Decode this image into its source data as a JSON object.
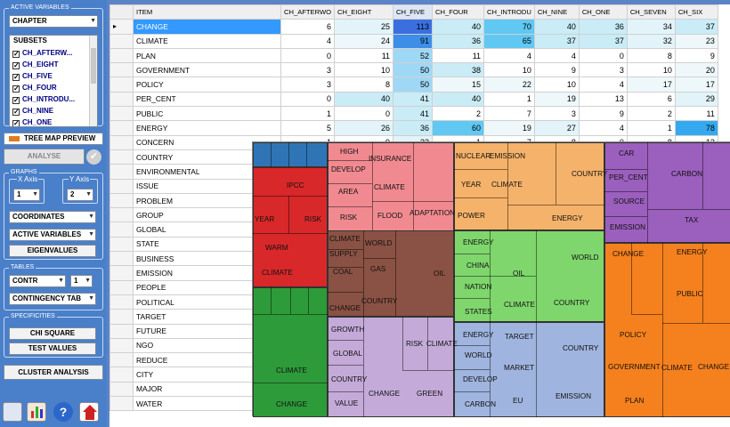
{
  "sidebar": {
    "active_variables_title": "ACTIVE VARIABLES",
    "chapter_select": "CHAPTER",
    "subsets_header": "SUBSETS",
    "subsets": [
      "CH_AFTERW...",
      "CH_EIGHT",
      "CH_FIVE",
      "CH_FOUR",
      "CH_INTRODU...",
      "CH_NINE",
      "CH_ONE"
    ],
    "tree_map_preview": "TREE MAP PREVIEW",
    "analyse": "ANALYSE",
    "graphs_title": "GRAPHS",
    "x_axis_label": "X Axis",
    "y_axis_label": "Y Axis",
    "x_axis_value": "1",
    "y_axis_value": "2",
    "coordinates": "COORDINATES",
    "active_variables_select": "ACTIVE VARIABLES",
    "eigenvalues": "EIGENVALUES",
    "tables_title": "TABLES",
    "contr_select": "CONTR",
    "contr_num": "1",
    "contingency": "CONTINGENCY TAB",
    "specificities_title": "SPECIFICITIES",
    "chi_square": "CHI SQUARE",
    "test_values": "TEST VALUES",
    "cluster_analysis": "CLUSTER ANALYSIS"
  },
  "grid": {
    "columns": [
      "ITEM",
      "CH_AFTERWO",
      "CH_EIGHT",
      "CH_FIVE",
      "CH_FOUR",
      "CH_INTRODU",
      "CH_NINE",
      "CH_ONE",
      "CH_SEVEN",
      "CH_SIX"
    ],
    "rows": [
      {
        "item": "CHANGE",
        "v": [
          "6",
          "25",
          "113",
          "40",
          "70",
          "40",
          "36",
          "34",
          "37"
        ]
      },
      {
        "item": "CLIMATE",
        "v": [
          "4",
          "24",
          "91",
          "36",
          "65",
          "37",
          "37",
          "32",
          "23"
        ]
      },
      {
        "item": "PLAN",
        "v": [
          "0",
          "11",
          "52",
          "11",
          "4",
          "4",
          "0",
          "8",
          "9"
        ]
      },
      {
        "item": "GOVERNMENT",
        "v": [
          "3",
          "10",
          "50",
          "38",
          "10",
          "9",
          "3",
          "10",
          "20"
        ]
      },
      {
        "item": "POLICY",
        "v": [
          "3",
          "8",
          "50",
          "15",
          "22",
          "10",
          "4",
          "17",
          "17"
        ]
      },
      {
        "item": "PER_CENT",
        "v": [
          "0",
          "40",
          "41",
          "40",
          "1",
          "19",
          "13",
          "6",
          "29"
        ]
      },
      {
        "item": "PUBLIC",
        "v": [
          "1",
          "0",
          "41",
          "2",
          "7",
          "3",
          "9",
          "2",
          "11"
        ]
      },
      {
        "item": "ENERGY",
        "v": [
          "5",
          "26",
          "36",
          "60",
          "19",
          "27",
          "4",
          "1",
          "78"
        ]
      },
      {
        "item": "CONCERN",
        "v": [
          "1",
          "9",
          "32",
          "1",
          "7",
          "8",
          "0",
          "8",
          "13"
        ]
      },
      {
        "item": "COUNTRY",
        "v": []
      },
      {
        "item": "ENVIRONMENTAL",
        "v": []
      },
      {
        "item": "ISSUE",
        "v": []
      },
      {
        "item": "PROBLEM",
        "v": []
      },
      {
        "item": "GROUP",
        "v": []
      },
      {
        "item": "GLOBAL",
        "v": []
      },
      {
        "item": "STATE",
        "v": []
      },
      {
        "item": "BUSINESS",
        "v": []
      },
      {
        "item": "EMISSION",
        "v": []
      },
      {
        "item": "PEOPLE",
        "v": []
      },
      {
        "item": "POLITICAL",
        "v": []
      },
      {
        "item": "TARGET",
        "v": []
      },
      {
        "item": "FUTURE",
        "v": []
      },
      {
        "item": "NGO",
        "v": []
      },
      {
        "item": "REDUCE",
        "v": []
      },
      {
        "item": "CITY",
        "v": []
      },
      {
        "item": "MAJOR",
        "v": []
      },
      {
        "item": "WATER",
        "v": []
      }
    ]
  },
  "treemap": {
    "labels": [
      "IPCC",
      "YEAR",
      "RISK",
      "WARM",
      "CLIMATE",
      "CLIMATE",
      "CHANGE",
      "HIGH",
      "DEVELOP",
      "INSURANCE",
      "AREA",
      "CLIMATE",
      "RISK",
      "FLOOD",
      "ADAPTATION",
      "NUCLEAR",
      "EMISSION",
      "YEAR",
      "CLIMATE",
      "COUNTRY",
      "POWER",
      "ENERGY",
      "CAR",
      "CARBON",
      "PER_CENT",
      "SOURCE",
      "TAX",
      "EMISSION",
      "CHANGE",
      "ENERGY",
      "CLIMATE",
      "SUPPLY",
      "COAL",
      "CHANGE",
      "WORLD",
      "GAS",
      "COUNTRY",
      "OIL",
      "ENERGY",
      "CHINA",
      "NATION",
      "STATES",
      "OIL",
      "CLIMATE",
      "WORLD",
      "COUNTRY",
      "PUBLIC",
      "GROWTH",
      "GLOBAL",
      "COUNTRY",
      "VALUE",
      "RISK",
      "CLIMATE",
      "CHANGE",
      "GREEN",
      "ENERGY",
      "WORLD",
      "DEVELOP",
      "CARBON",
      "TARGET",
      "MARKET",
      "EU",
      "COUNTRY",
      "EMISSION",
      "POLICY",
      "GOVERNMENT",
      "PLAN",
      "CLIMATE",
      "CHANGE"
    ]
  }
}
